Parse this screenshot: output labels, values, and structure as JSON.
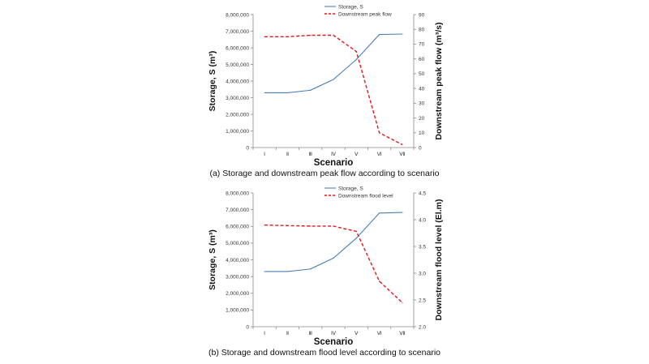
{
  "chart_data": [
    {
      "type": "line",
      "caption": "(a) Storage and downstream peak flow according to scenario",
      "xlabel": "Scenario",
      "categories": [
        "Ⅰ",
        "Ⅱ",
        "Ⅲ",
        "Ⅳ",
        "Ⅴ",
        "Ⅵ",
        "Ⅶ"
      ],
      "ylabel_left": "Storage, S (m³)",
      "ylabel_right": "Downstream peak flow (m³/s)",
      "ylim_left": [
        0,
        8000000
      ],
      "ylim_right": [
        0,
        90
      ],
      "yticks_left": [
        "0",
        "1,000,000",
        "2,000,000",
        "3,000,000",
        "4,000,000",
        "5,000,000",
        "6,000,000",
        "7,000,000",
        "8,000,000"
      ],
      "yticks_right": [
        "0",
        "10",
        "20",
        "30",
        "40",
        "50",
        "60",
        "70",
        "80",
        "90"
      ],
      "series": [
        {
          "name": "Storage, S",
          "axis": "left",
          "style": "solid",
          "color": "#4a7ebb",
          "values": [
            3300000,
            3300000,
            3450000,
            4100000,
            5300000,
            6800000,
            6830000
          ]
        },
        {
          "name": "Downstream peak flow",
          "axis": "right",
          "style": "dashed",
          "color": "#e8141b",
          "values": [
            75,
            75,
            76,
            76,
            65,
            10,
            2
          ]
        }
      ]
    },
    {
      "type": "line",
      "caption": "(b) Storage and downstream flood level according to scenario",
      "xlabel": "Scenario",
      "categories": [
        "Ⅰ",
        "Ⅱ",
        "Ⅲ",
        "Ⅳ",
        "Ⅴ",
        "Ⅵ",
        "Ⅶ"
      ],
      "ylabel_left": "Storage, S (m³)",
      "ylabel_right": "Downstream flood level (El.m)",
      "ylim_left": [
        0,
        8000000
      ],
      "ylim_right": [
        2.0,
        4.5
      ],
      "yticks_left": [
        "0",
        "1,000,000",
        "2,000,000",
        "3,000,000",
        "4,000,000",
        "5,000,000",
        "6,000,000",
        "7,000,000",
        "8,000,000"
      ],
      "yticks_right": [
        "2.0",
        "2.5",
        "3.0",
        "3.5",
        "4.0",
        "4.5"
      ],
      "series": [
        {
          "name": "Storage, S",
          "axis": "left",
          "style": "solid",
          "color": "#4a7ebb",
          "values": [
            3300000,
            3300000,
            3450000,
            4100000,
            5300000,
            6800000,
            6830000
          ]
        },
        {
          "name": "Downstream flood level",
          "axis": "right",
          "style": "dashed",
          "color": "#e8141b",
          "values": [
            3.9,
            3.89,
            3.88,
            3.88,
            3.78,
            2.85,
            2.45
          ]
        }
      ]
    }
  ]
}
